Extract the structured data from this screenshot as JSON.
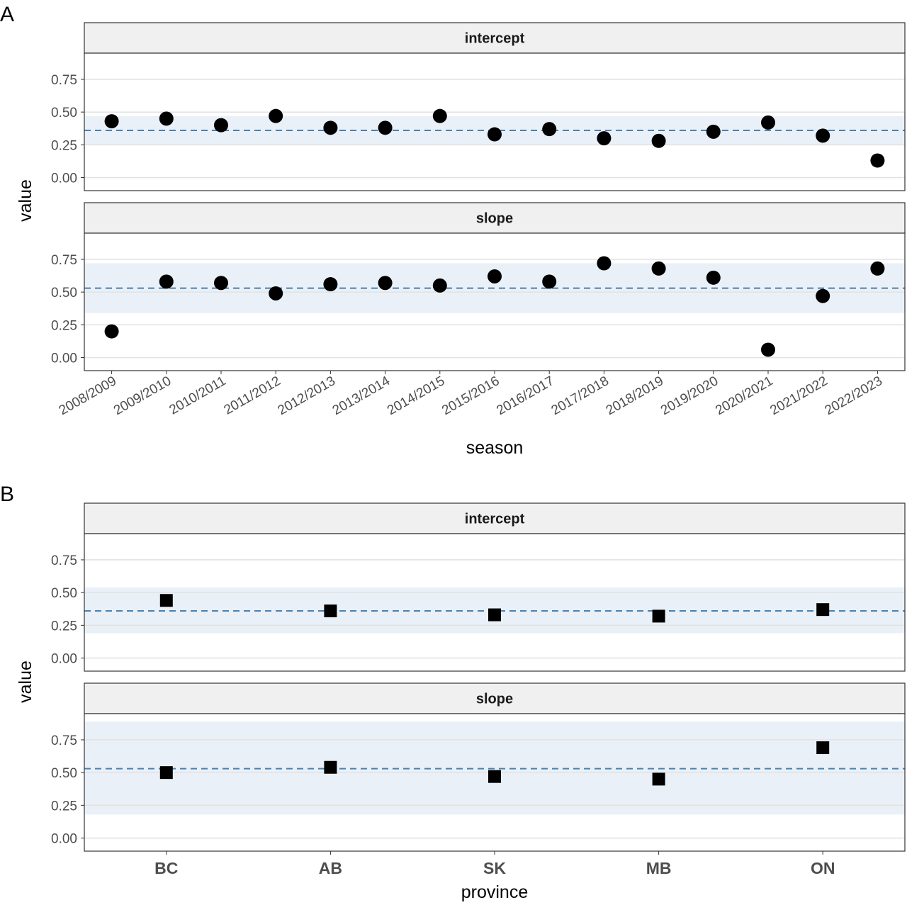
{
  "figure": {
    "panel_a_label": "A",
    "panel_b_label": "B"
  },
  "chart_data": [
    {
      "id": "A",
      "type": "scatter",
      "marker": "circle",
      "xlabel": "season",
      "ylabel": "value",
      "ylim": [
        -0.1,
        0.95
      ],
      "yticks": [
        "0.00",
        "0.25",
        "0.50",
        "0.75"
      ],
      "grid": true,
      "categories": [
        "2008/2009",
        "2009/2010",
        "2010/2011",
        "2011/2012",
        "2012/2013",
        "2013/2014",
        "2014/2015",
        "2015/2016",
        "2016/2017",
        "2017/2018",
        "2018/2019",
        "2019/2020",
        "2020/2021",
        "2021/2022",
        "2022/2023"
      ],
      "facets": [
        {
          "label": "intercept",
          "reference": 0.36,
          "band": [
            0.25,
            0.47
          ],
          "values": [
            0.43,
            0.45,
            0.4,
            0.47,
            0.38,
            0.38,
            0.47,
            0.33,
            0.37,
            0.3,
            0.28,
            0.35,
            0.42,
            0.32,
            0.13
          ]
        },
        {
          "label": "slope",
          "reference": 0.53,
          "band": [
            0.34,
            0.72
          ],
          "values": [
            0.2,
            0.58,
            0.57,
            0.49,
            0.56,
            0.57,
            0.55,
            0.62,
            0.58,
            0.72,
            0.68,
            0.61,
            0.06,
            0.47,
            0.68
          ]
        }
      ]
    },
    {
      "id": "B",
      "type": "scatter",
      "marker": "square",
      "xlabel": "province",
      "ylabel": "value",
      "ylim": [
        -0.1,
        0.95
      ],
      "yticks": [
        "0.00",
        "0.25",
        "0.50",
        "0.75"
      ],
      "grid": true,
      "categories": [
        "BC",
        "AB",
        "SK",
        "MB",
        "ON"
      ],
      "facets": [
        {
          "label": "intercept",
          "reference": 0.36,
          "band": [
            0.19,
            0.54
          ],
          "values": [
            0.44,
            0.36,
            0.33,
            0.32,
            0.37
          ]
        },
        {
          "label": "slope",
          "reference": 0.53,
          "band": [
            0.18,
            0.89
          ],
          "values": [
            0.5,
            0.54,
            0.47,
            0.45,
            0.69
          ]
        }
      ]
    }
  ]
}
